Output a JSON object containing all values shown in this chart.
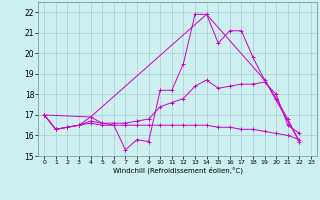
{
  "xlabel": "Windchill (Refroidissement éolien,°C)",
  "background_color": "#cdf0f0",
  "grid_color": "#b0c8d8",
  "line_color": "#cc00cc",
  "xlim": [
    -0.5,
    23.5
  ],
  "ylim": [
    15.0,
    22.5
  ],
  "yticks": [
    15,
    16,
    17,
    18,
    19,
    20,
    21,
    22
  ],
  "xticks": [
    0,
    1,
    2,
    3,
    4,
    5,
    6,
    7,
    8,
    9,
    10,
    11,
    12,
    13,
    14,
    15,
    16,
    17,
    18,
    19,
    20,
    21,
    22,
    23
  ],
  "series": [
    {
      "x": [
        0,
        1,
        2,
        3,
        4,
        5,
        6,
        7,
        8,
        9,
        10,
        11,
        12,
        13,
        14,
        15,
        16,
        17,
        18,
        19,
        20,
        21,
        22
      ],
      "y": [
        17.0,
        16.3,
        16.4,
        16.5,
        16.9,
        16.6,
        16.5,
        15.3,
        15.8,
        15.7,
        18.2,
        18.2,
        19.5,
        21.9,
        21.9,
        20.5,
        21.1,
        21.1,
        19.8,
        18.7,
        17.8,
        16.8,
        15.7
      ]
    },
    {
      "x": [
        0,
        1,
        2,
        3,
        4,
        5,
        6,
        7,
        8,
        9,
        10,
        11,
        12,
        13,
        14,
        15,
        16,
        17,
        18,
        19,
        20,
        21,
        22
      ],
      "y": [
        17.0,
        16.3,
        16.4,
        16.5,
        16.6,
        16.5,
        16.5,
        16.5,
        16.5,
        16.5,
        16.5,
        16.5,
        16.5,
        16.5,
        16.5,
        16.4,
        16.4,
        16.3,
        16.3,
        16.2,
        16.1,
        16.0,
        15.8
      ]
    },
    {
      "x": [
        0,
        1,
        2,
        3,
        4,
        5,
        6,
        7,
        8,
        9,
        10,
        11,
        12,
        13,
        14,
        15,
        16,
        17,
        18,
        19,
        20,
        21,
        22
      ],
      "y": [
        17.0,
        16.3,
        16.4,
        16.5,
        16.7,
        16.6,
        16.6,
        16.6,
        16.7,
        16.8,
        17.4,
        17.6,
        17.8,
        18.4,
        18.7,
        18.3,
        18.4,
        18.5,
        18.5,
        18.6,
        18.0,
        16.5,
        16.1
      ]
    },
    {
      "x": [
        0,
        4,
        14,
        19,
        22
      ],
      "y": [
        17.0,
        16.9,
        21.9,
        18.7,
        15.7
      ]
    }
  ]
}
